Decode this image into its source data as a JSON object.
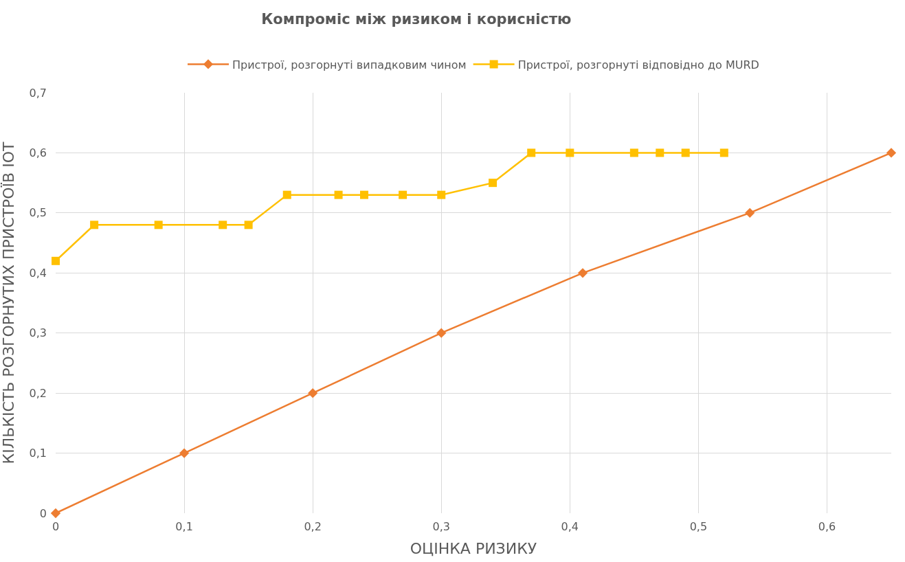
{
  "chart_data": {
    "type": "line",
    "title": "Компроміс між ризиком і корисністю",
    "xlabel": "ОЦІНКА РИЗИКУ",
    "ylabel": "КІЛЬКІСТЬ РОЗГОРНУТИХ ПРИСТРОЇВ IOT",
    "series": [
      {
        "name": "Пристрої, розгорнуті випадковим чином",
        "color": "#ed7d31",
        "marker": "diamond",
        "x": [
          0,
          0.1,
          0.2,
          0.3,
          0.41,
          0.54,
          0.65
        ],
        "values": [
          0,
          0.1,
          0.2,
          0.3,
          0.4,
          0.5,
          0.6
        ]
      },
      {
        "name": "Пристрої, розгорнуті відповідно до MURD",
        "color": "#ffc000",
        "marker": "square",
        "x": [
          0,
          0.03,
          0.08,
          0.13,
          0.15,
          0.18,
          0.22,
          0.24,
          0.27,
          0.3,
          0.34,
          0.37,
          0.4,
          0.45,
          0.47,
          0.49,
          0.52
        ],
        "values": [
          0.42,
          0.48,
          0.48,
          0.48,
          0.48,
          0.53,
          0.53,
          0.53,
          0.53,
          0.53,
          0.55,
          0.6,
          0.6,
          0.6,
          0.6,
          0.6,
          0.6
        ]
      }
    ],
    "xlim": [
      0,
      0.65
    ],
    "xticks": [
      0,
      {
        "value": 0.1,
        "label": "0,1"
      },
      {
        "value": 0.2,
        "label": "0,2"
      },
      {
        "value": 0.3,
        "label": "0,3"
      },
      {
        "value": 0.4,
        "label": "0,4"
      },
      {
        "value": 0.5,
        "label": "0,5"
      },
      {
        "value": 0.6,
        "label": "0,6"
      }
    ],
    "ylim": [
      0,
      0.7
    ],
    "yticks": [
      0,
      {
        "value": 0.1,
        "label": "0,1"
      },
      {
        "value": 0.2,
        "label": "0,2"
      },
      {
        "value": 0.3,
        "label": "0,3"
      },
      {
        "value": 0.4,
        "label": "0,4"
      },
      {
        "value": 0.5,
        "label": "0,5"
      },
      {
        "value": 0.6,
        "label": "0,6"
      },
      {
        "value": 0.7,
        "label": "0,7"
      }
    ],
    "grid": true,
    "legend": "top",
    "line_style": "solid"
  }
}
